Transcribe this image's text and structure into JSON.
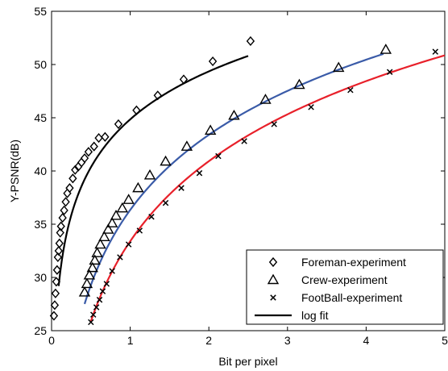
{
  "chart_data": {
    "type": "scatter",
    "title": "",
    "xlabel": "Bit per pixel",
    "ylabel": "Y-PSNR(dB)",
    "xlim": [
      0,
      5
    ],
    "ylim": [
      25,
      55
    ],
    "xticks": [
      "0",
      "1",
      "2",
      "3",
      "4",
      "5"
    ],
    "yticks": [
      "25",
      "30",
      "35",
      "40",
      "45",
      "50",
      "55"
    ],
    "grid": false,
    "legend_position": "bottom-right",
    "series": [
      {
        "name": "Foreman-experiment",
        "marker": "diamond",
        "color": "#000000",
        "x": [
          0.03,
          0.04,
          0.05,
          0.06,
          0.07,
          0.08,
          0.09,
          0.1,
          0.11,
          0.12,
          0.14,
          0.16,
          0.18,
          0.2,
          0.23,
          0.27,
          0.3,
          0.34,
          0.38,
          0.42,
          0.47,
          0.54,
          0.6,
          0.68,
          0.85,
          1.08,
          1.35,
          1.68,
          2.05,
          2.53
        ],
        "y": [
          26.4,
          27.4,
          28.5,
          29.6,
          30.7,
          31.9,
          32.5,
          33.2,
          34.2,
          34.8,
          35.6,
          36.3,
          37.1,
          37.9,
          38.4,
          39.3,
          40.1,
          40.4,
          40.8,
          41.2,
          41.8,
          42.3,
          43.1,
          43.2,
          44.4,
          45.7,
          47.1,
          48.6,
          50.3,
          52.2
        ]
      },
      {
        "name": "Crew-experiment",
        "marker": "triangle",
        "color": "#000000",
        "x": [
          0.42,
          0.45,
          0.48,
          0.52,
          0.55,
          0.58,
          0.62,
          0.67,
          0.72,
          0.77,
          0.82,
          0.9,
          0.98,
          1.1,
          1.25,
          1.45,
          1.72,
          2.02,
          2.32,
          2.72,
          3.15,
          3.65,
          4.25
        ],
        "y": [
          28.6,
          29.4,
          30.2,
          30.9,
          31.6,
          32.3,
          33.1,
          33.8,
          34.5,
          35.1,
          35.8,
          36.5,
          37.3,
          38.4,
          39.6,
          40.9,
          42.3,
          43.8,
          45.2,
          46.7,
          48.1,
          49.7,
          51.4
        ]
      },
      {
        "name": "FootBall-experiment",
        "marker": "x",
        "color": "#000000",
        "x": [
          0.5,
          0.53,
          0.57,
          0.61,
          0.65,
          0.7,
          0.77,
          0.87,
          0.98,
          1.12,
          1.27,
          1.45,
          1.65,
          1.88,
          2.12,
          2.45,
          2.83,
          3.3,
          3.8,
          4.3,
          4.88
        ],
        "y": [
          25.8,
          26.5,
          27.2,
          27.9,
          28.7,
          29.4,
          30.6,
          31.9,
          33.1,
          34.4,
          35.7,
          37.0,
          38.4,
          39.8,
          41.4,
          42.8,
          44.4,
          46.0,
          47.6,
          49.3,
          51.2
        ]
      }
    ],
    "fits": [
      {
        "name": "log fit",
        "color": "#000000",
        "x_start": 0.09,
        "x_end": 2.5,
        "a": 44.85,
        "b": 6.5
      },
      {
        "color": "#3a5ba8",
        "x_start": 0.42,
        "x_end": 4.22,
        "a": 36.34,
        "b": 10.18
      },
      {
        "color": "#e8202a",
        "x_start": 0.5,
        "x_end": 5.0,
        "a": 33.4,
        "b": 10.85
      }
    ],
    "legend_entries": [
      {
        "label": "Foreman-experiment",
        "marker": "diamond"
      },
      {
        "label": "Crew-experiment",
        "marker": "triangle"
      },
      {
        "label": "FootBall-experiment",
        "marker": "x"
      },
      {
        "label": "log fit",
        "marker": "line"
      }
    ]
  }
}
